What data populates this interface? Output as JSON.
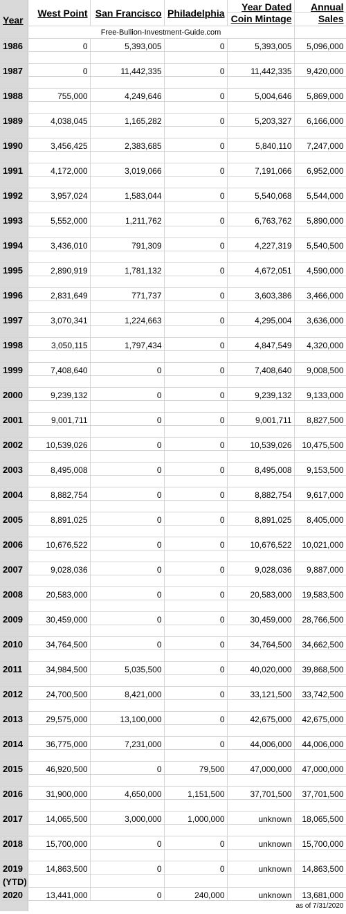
{
  "headers": {
    "year": "Year",
    "west_point": "West Point",
    "san_francisco": "San Francisco",
    "philadelphia": "Philadelphia",
    "year_dated_line1": "Year Dated",
    "year_dated_line2": "Coin Mintage",
    "annual_line1": "Annual",
    "annual_line2": "Sales"
  },
  "source": "Free-Bullion-Investment-Guide.com",
  "rows": [
    {
      "year": "1986",
      "wp": "0",
      "sf": "5,393,005",
      "ph": "0",
      "mint": "5,393,005",
      "sales": "5,096,000"
    },
    {
      "year": "1987",
      "wp": "0",
      "sf": "11,442,335",
      "ph": "0",
      "mint": "11,442,335",
      "sales": "9,420,000"
    },
    {
      "year": "1988",
      "wp": "755,000",
      "sf": "4,249,646",
      "ph": "0",
      "mint": "5,004,646",
      "sales": "5,869,000"
    },
    {
      "year": "1989",
      "wp": "4,038,045",
      "sf": "1,165,282",
      "ph": "0",
      "mint": "5,203,327",
      "sales": "6,166,000"
    },
    {
      "year": "1990",
      "wp": "3,456,425",
      "sf": "2,383,685",
      "ph": "0",
      "mint": "5,840,110",
      "sales": "7,247,000"
    },
    {
      "year": "1991",
      "wp": "4,172,000",
      "sf": "3,019,066",
      "ph": "0",
      "mint": "7,191,066",
      "sales": "6,952,000"
    },
    {
      "year": "1992",
      "wp": "3,957,024",
      "sf": "1,583,044",
      "ph": "0",
      "mint": "5,540,068",
      "sales": "5,544,000"
    },
    {
      "year": "1993",
      "wp": "5,552,000",
      "sf": "1,211,762",
      "ph": "0",
      "mint": "6,763,762",
      "sales": "5,890,000"
    },
    {
      "year": "1994",
      "wp": "3,436,010",
      "sf": "791,309",
      "ph": "0",
      "mint": "4,227,319",
      "sales": "5,540,500"
    },
    {
      "year": "1995",
      "wp": "2,890,919",
      "sf": "1,781,132",
      "ph": "0",
      "mint": "4,672,051",
      "sales": "4,590,000"
    },
    {
      "year": "1996",
      "wp": "2,831,649",
      "sf": "771,737",
      "ph": "0",
      "mint": "3,603,386",
      "sales": "3,466,000"
    },
    {
      "year": "1997",
      "wp": "3,070,341",
      "sf": "1,224,663",
      "ph": "0",
      "mint": "4,295,004",
      "sales": "3,636,000"
    },
    {
      "year": "1998",
      "wp": "3,050,115",
      "sf": "1,797,434",
      "ph": "0",
      "mint": "4,847,549",
      "sales": "4,320,000"
    },
    {
      "year": "1999",
      "wp": "7,408,640",
      "sf": "0",
      "ph": "0",
      "mint": "7,408,640",
      "sales": "9,008,500"
    },
    {
      "year": "2000",
      "wp": "9,239,132",
      "sf": "0",
      "ph": "0",
      "mint": "9,239,132",
      "sales": "9,133,000"
    },
    {
      "year": "2001",
      "wp": "9,001,711",
      "sf": "0",
      "ph": "0",
      "mint": "9,001,711",
      "sales": "8,827,500"
    },
    {
      "year": "2002",
      "wp": "10,539,026",
      "sf": "0",
      "ph": "0",
      "mint": "10,539,026",
      "sales": "10,475,500"
    },
    {
      "year": "2003",
      "wp": "8,495,008",
      "sf": "0",
      "ph": "0",
      "mint": "8,495,008",
      "sales": "9,153,500"
    },
    {
      "year": "2004",
      "wp": "8,882,754",
      "sf": "0",
      "ph": "0",
      "mint": "8,882,754",
      "sales": "9,617,000"
    },
    {
      "year": "2005",
      "wp": "8,891,025",
      "sf": "0",
      "ph": "0",
      "mint": "8,891,025",
      "sales": "8,405,000"
    },
    {
      "year": "2006",
      "wp": "10,676,522",
      "sf": "0",
      "ph": "0",
      "mint": "10,676,522",
      "sales": "10,021,000"
    },
    {
      "year": "2007",
      "wp": "9,028,036",
      "sf": "0",
      "ph": "0",
      "mint": "9,028,036",
      "sales": "9,887,000"
    },
    {
      "year": "2008",
      "wp": "20,583,000",
      "sf": "0",
      "ph": "0",
      "mint": "20,583,000",
      "sales": "19,583,500"
    },
    {
      "year": "2009",
      "wp": "30,459,000",
      "sf": "0",
      "ph": "0",
      "mint": "30,459,000",
      "sales": "28,766,500"
    },
    {
      "year": "2010",
      "wp": "34,764,500",
      "sf": "0",
      "ph": "0",
      "mint": "34,764,500",
      "sales": "34,662,500"
    },
    {
      "year": "2011",
      "wp": "34,984,500",
      "sf": "5,035,500",
      "ph": "0",
      "mint": "40,020,000",
      "sales": "39,868,500"
    },
    {
      "year": "2012",
      "wp": "24,700,500",
      "sf": "8,421,000",
      "ph": "0",
      "mint": "33,121,500",
      "sales": "33,742,500"
    },
    {
      "year": "2013",
      "wp": "29,575,000",
      "sf": "13,100,000",
      "ph": "0",
      "mint": "42,675,000",
      "sales": "42,675,000"
    },
    {
      "year": "2014",
      "wp": "36,775,000",
      "sf": "7,231,000",
      "ph": "0",
      "mint": "44,006,000",
      "sales": "44,006,000"
    },
    {
      "year": "2015",
      "wp": "46,920,500",
      "sf": "0",
      "ph": "79,500",
      "mint": "47,000,000",
      "sales": "47,000,000"
    },
    {
      "year": "2016",
      "wp": "31,900,000",
      "sf": "4,650,000",
      "ph": "1,151,500",
      "mint": "37,701,500",
      "sales": "37,701,500"
    },
    {
      "year": "2017",
      "wp": "14,065,500",
      "sf": "3,000,000",
      "ph": "1,000,000",
      "mint": "unknown",
      "sales": "18,065,500"
    },
    {
      "year": "2018",
      "wp": "15,700,000",
      "sf": "0",
      "ph": "0",
      "mint": "unknown",
      "sales": "15,700,000"
    },
    {
      "year": "2019",
      "wp": "14,863,500",
      "sf": "0",
      "ph": "0",
      "mint": "unknown",
      "sales": "14,863,500"
    }
  ],
  "ytd": {
    "label": "(YTD)",
    "year": "2020",
    "wp": "13,441,000",
    "sf": "0",
    "ph": "240,000",
    "mint": "unknown",
    "sales": "13,681,000"
  },
  "note": "as of 7/31/2020"
}
